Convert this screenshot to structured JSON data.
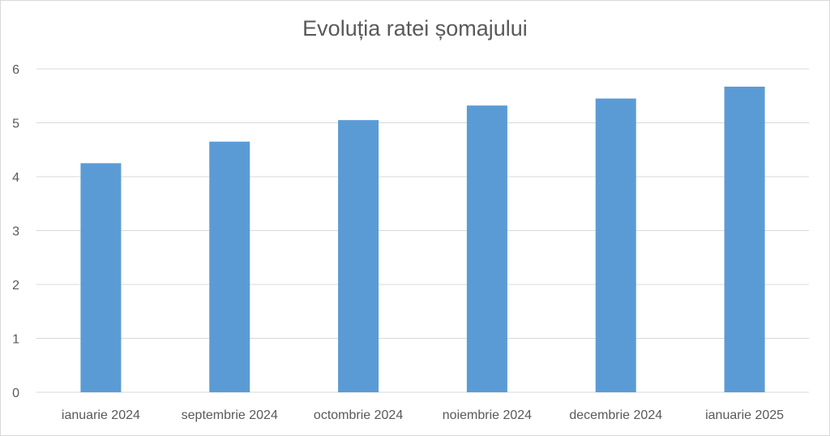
{
  "chart_data": {
    "type": "bar",
    "title": "Evoluția ratei șomajului",
    "categories": [
      "ianuarie 2024",
      "septembrie 2024",
      "octombrie 2024",
      "noiembrie 2024",
      "decembrie 2024",
      "ianuarie 2025"
    ],
    "values": [
      4.25,
      4.65,
      5.05,
      5.32,
      5.45,
      5.67
    ],
    "ylim": [
      0,
      6
    ],
    "yticks": [
      0,
      1,
      2,
      3,
      4,
      5,
      6
    ],
    "grid": true,
    "legend": "none",
    "colors": {
      "bar": "#5b9bd5",
      "grid": "#d9d9d9",
      "text": "#595959"
    }
  }
}
